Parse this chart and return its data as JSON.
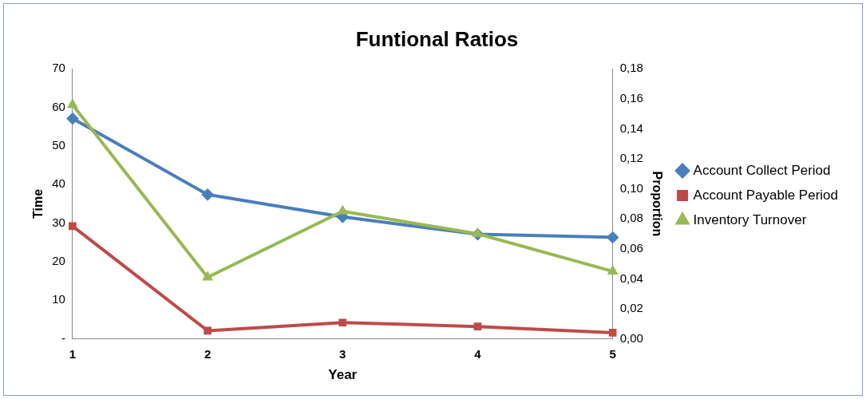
{
  "chart_data": {
    "type": "line",
    "title": "Funtional Ratios",
    "xlabel": "Year",
    "ylabel": "Time",
    "y2label": "Proportion",
    "categories": [
      "1",
      "2",
      "3",
      "4",
      "5"
    ],
    "series": [
      {
        "name": "Account Collect Period",
        "color": "#4a7ebb",
        "marker": "diamond",
        "values": [
          57.1,
          37.4,
          31.6,
          27.1,
          26.3
        ]
      },
      {
        "name": "Account Payable Period",
        "color": "#be4b48",
        "marker": "square",
        "values": [
          29.2,
          2.1,
          4.2,
          3.2,
          1.6
        ]
      },
      {
        "name": "Inventory Turnover",
        "color": "#98b954",
        "marker": "triangle",
        "axis": "y2",
        "values": [
          0.156,
          0.041,
          0.085,
          0.07,
          0.045
        ]
      }
    ],
    "ylim": [
      0,
      70
    ],
    "yticks": [
      {
        "value": 0,
        "label": "-"
      },
      10,
      20,
      30,
      40,
      50,
      60,
      70
    ],
    "y2lim": [
      0,
      0.18
    ],
    "y2ticks": [
      {
        "value": 0,
        "label": "0,00"
      },
      {
        "value": 0.02,
        "label": "0,02"
      },
      {
        "value": 0.04,
        "label": "0,04"
      },
      {
        "value": 0.06,
        "label": "0,06"
      },
      {
        "value": 0.08,
        "label": "0,08"
      },
      {
        "value": 0.1,
        "label": "0,10"
      },
      {
        "value": 0.12,
        "label": "0,12"
      },
      {
        "value": 0.14,
        "label": "0,14"
      },
      {
        "value": 0.16,
        "label": "0,16"
      },
      {
        "value": 0.18,
        "label": "0,18"
      }
    ],
    "grid": false,
    "legend": "right",
    "line_style": "solid"
  }
}
